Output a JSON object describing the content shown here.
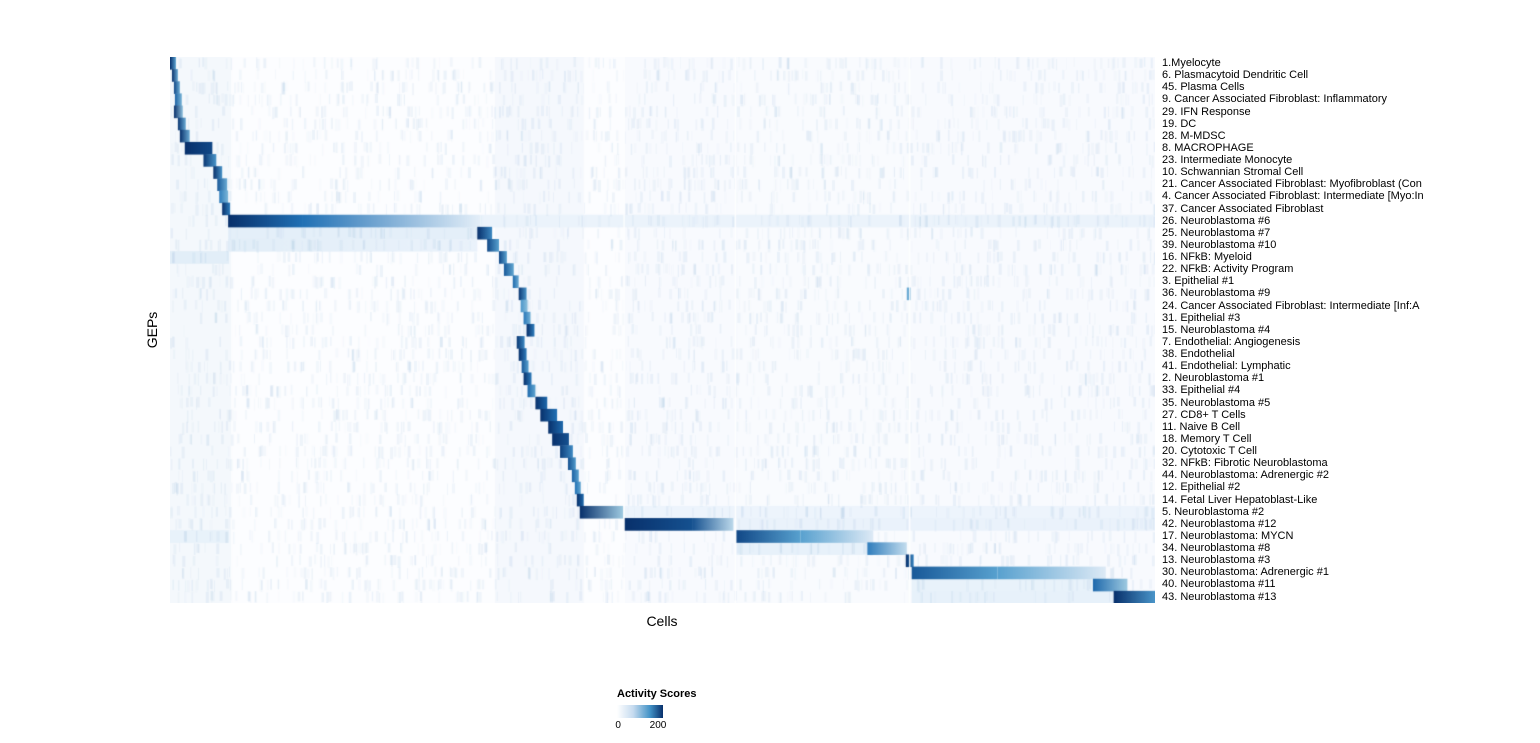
{
  "chart_data": {
    "type": "heatmap",
    "title": "",
    "xlabel": "Cells",
    "ylabel": "GEPs",
    "value_label": "Activity Scores",
    "colorscale": {
      "min": 0,
      "max": 200,
      "stops": [
        [
          0,
          "#f7fbff"
        ],
        [
          40,
          "#d9e8f5"
        ],
        [
          80,
          "#9ecae1"
        ],
        [
          120,
          "#58a1cf"
        ],
        [
          160,
          "#2171b5"
        ],
        [
          200,
          "#08306b"
        ]
      ]
    },
    "legend": {
      "title": "Activity Scores",
      "min_label": "0",
      "max_label": "200",
      "gradient_css": [
        "#ffffff",
        "#c6dbef 35%",
        "#4292c6 72%",
        "#08306b"
      ]
    },
    "background_bands": [
      {
        "start": 0.0,
        "end": 0.062,
        "alpha": 0.06
      },
      {
        "start": 0.33,
        "end": 0.42,
        "alpha": 0.05
      },
      {
        "start": 0.46,
        "end": 0.575,
        "alpha": 0.03
      },
      {
        "start": 0.575,
        "end": 0.75,
        "alpha": 0.025
      },
      {
        "start": 0.75,
        "end": 1.0,
        "alpha": 0.03
      }
    ],
    "separators": [
      0.461,
      0.574,
      0.751
    ],
    "noise": {
      "seed": 42,
      "per_row": 130,
      "alpha": 0.09
    },
    "rows": [
      {
        "label": "1.Myelocyte",
        "blocks": [
          [
            0.0,
            0.006,
            200,
            120
          ]
        ]
      },
      {
        "label": "6. Plasmacytoid Dendritic Cell",
        "blocks": [
          [
            0.002,
            0.008,
            200,
            110
          ]
        ]
      },
      {
        "label": "45. Plasma Cells",
        "blocks": [
          [
            0.004,
            0.01,
            185,
            110
          ]
        ]
      },
      {
        "label": "9. Cancer Associated Fibroblast: Inflammatory",
        "blocks": [
          [
            0.005,
            0.012,
            170,
            100
          ]
        ]
      },
      {
        "label": "29. IFN Response",
        "blocks": [
          [
            0.004,
            0.013,
            200,
            90
          ]
        ]
      },
      {
        "label": "19. DC",
        "blocks": [
          [
            0.008,
            0.016,
            195,
            110
          ]
        ]
      },
      {
        "label": "28. M-MDSC",
        "blocks": [
          [
            0.01,
            0.02,
            200,
            110
          ]
        ]
      },
      {
        "label": "8. MACROPHAGE",
        "blocks": [
          [
            0.015,
            0.043,
            200,
            185
          ]
        ]
      },
      {
        "label": "23. Intermediate Monocyte",
        "blocks": [
          [
            0.034,
            0.047,
            195,
            130
          ]
        ]
      },
      {
        "label": "10. Schwannian Stromal Cell",
        "blocks": [
          [
            0.044,
            0.053,
            200,
            130
          ]
        ]
      },
      {
        "label": "21. Cancer Associated Fibroblast: Myofibroblast (Con",
        "blocks": [
          [
            0.048,
            0.058,
            175,
            110
          ]
        ]
      },
      {
        "label": "4. Cancer Associated Fibroblast: Intermediate [Myo:In",
        "blocks": [
          [
            0.05,
            0.059,
            150,
            100
          ]
        ]
      },
      {
        "label": "37. Cancer Associated Fibroblast",
        "blocks": [
          [
            0.053,
            0.061,
            200,
            150
          ]
        ]
      },
      {
        "label": "26. Neuroblastoma #6",
        "blocks": [
          [
            0.315,
            1.0,
            16,
            16
          ],
          [
            0.059,
            0.135,
            200,
            160
          ],
          [
            0.135,
            0.315,
            160,
            25
          ]
        ]
      },
      {
        "label": "25. Neuroblastoma #7",
        "blocks": [
          [
            0.059,
            0.312,
            26,
            26
          ],
          [
            0.312,
            0.327,
            200,
            140
          ]
        ]
      },
      {
        "label": "39. Neuroblastoma #10",
        "blocks": [
          [
            0.059,
            0.312,
            28,
            18
          ],
          [
            0.322,
            0.334,
            185,
            120
          ]
        ]
      },
      {
        "label": "16. NFkB: Myeloid",
        "blocks": [
          [
            0.0,
            0.06,
            28,
            28
          ],
          [
            0.334,
            0.342,
            185,
            120
          ]
        ]
      },
      {
        "label": "22. NFkB: Activity Program",
        "blocks": [
          [
            0.339,
            0.349,
            175,
            115
          ]
        ]
      },
      {
        "label": "3. Epithelial #1",
        "blocks": [
          [
            0.348,
            0.354,
            165,
            110
          ]
        ]
      },
      {
        "label": "36. Neuroblastoma #9",
        "blocks": [
          [
            0.354,
            0.362,
            195,
            130
          ],
          [
            0.748,
            0.752,
            110,
            110
          ]
        ]
      },
      {
        "label": "24. Cancer Associated Fibroblast: Intermediate [Inf:A",
        "blocks": [
          [
            0.356,
            0.363,
            130,
            90
          ]
        ]
      },
      {
        "label": "31. Epithelial #3",
        "blocks": [
          [
            0.359,
            0.366,
            155,
            105
          ]
        ]
      },
      {
        "label": "15. Neuroblastoma #4",
        "blocks": [
          [
            0.362,
            0.37,
            200,
            150
          ]
        ]
      },
      {
        "label": "7. Endothelial: Angiogenesis",
        "blocks": [
          [
            0.352,
            0.36,
            195,
            140
          ]
        ]
      },
      {
        "label": "38. Endothelial",
        "blocks": [
          [
            0.354,
            0.362,
            200,
            150
          ]
        ]
      },
      {
        "label": "41. Endothelial: Lymphatic",
        "blocks": [
          [
            0.357,
            0.364,
            175,
            120
          ]
        ]
      },
      {
        "label": "2. Neuroblastoma #1",
        "blocks": [
          [
            0.359,
            0.367,
            200,
            150
          ]
        ]
      },
      {
        "label": "33. Epithelial #4",
        "blocks": [
          [
            0.363,
            0.371,
            165,
            115
          ]
        ]
      },
      {
        "label": "35. Neuroblastoma #5",
        "blocks": [
          [
            0.371,
            0.383,
            200,
            165
          ]
        ]
      },
      {
        "label": "27. CD8+ T Cells",
        "blocks": [
          [
            0.376,
            0.393,
            200,
            160
          ]
        ]
      },
      {
        "label": "11. Naive B Cell",
        "blocks": [
          [
            0.384,
            0.399,
            200,
            165
          ]
        ]
      },
      {
        "label": "18. Memory T Cell",
        "blocks": [
          [
            0.388,
            0.405,
            200,
            180
          ]
        ]
      },
      {
        "label": "20. Cytotoxic T Cell",
        "blocks": [
          [
            0.396,
            0.409,
            190,
            140
          ]
        ]
      },
      {
        "label": "32. NFkB: Fibrotic Neuroblastoma",
        "blocks": [
          [
            0.404,
            0.412,
            180,
            125
          ]
        ]
      },
      {
        "label": "44. Neuroblastoma: Adrenergic #2",
        "blocks": [
          [
            0.408,
            0.415,
            170,
            120
          ]
        ]
      },
      {
        "label": "12. Epithelial #2",
        "blocks": [
          [
            0.411,
            0.417,
            160,
            115
          ]
        ]
      },
      {
        "label": "14. Fetal Liver Hepatoblast-Like",
        "blocks": [
          [
            0.413,
            0.42,
            200,
            165
          ]
        ]
      },
      {
        "label": "5. Neuroblastoma #2",
        "blocks": [
          [
            0.46,
            1.0,
            14,
            14
          ],
          [
            0.416,
            0.46,
            200,
            80
          ]
        ]
      },
      {
        "label": "42. Neuroblastoma #12",
        "blocks": [
          [
            0.575,
            1.0,
            18,
            18
          ],
          [
            0.461,
            0.53,
            200,
            180
          ],
          [
            0.53,
            0.572,
            180,
            60
          ]
        ]
      },
      {
        "label": "17. Neuroblastoma: MYCN",
        "blocks": [
          [
            0.0,
            0.06,
            20,
            20
          ],
          [
            0.575,
            0.64,
            185,
            120
          ],
          [
            0.64,
            0.714,
            120,
            35
          ]
        ]
      },
      {
        "label": "34. Neuroblastoma #8",
        "blocks": [
          [
            0.575,
            0.708,
            22,
            22
          ],
          [
            0.708,
            0.748,
            150,
            55
          ]
        ]
      },
      {
        "label": "13. Neuroblastoma #3",
        "blocks": [
          [
            0.747,
            0.755,
            200,
            145
          ]
        ]
      },
      {
        "label": "30. Neuroblastoma: Adrenergic #1",
        "blocks": [
          [
            0.753,
            0.84,
            175,
            120
          ],
          [
            0.84,
            0.95,
            120,
            35
          ]
        ]
      },
      {
        "label": "40. Neuroblastoma #11",
        "blocks": [
          [
            0.753,
            0.937,
            20,
            20
          ],
          [
            0.937,
            0.972,
            165,
            80
          ]
        ]
      },
      {
        "label": "43. Neuroblastoma #13",
        "blocks": [
          [
            0.753,
            0.958,
            22,
            22
          ],
          [
            0.958,
            1.0,
            200,
            130
          ]
        ]
      }
    ]
  }
}
